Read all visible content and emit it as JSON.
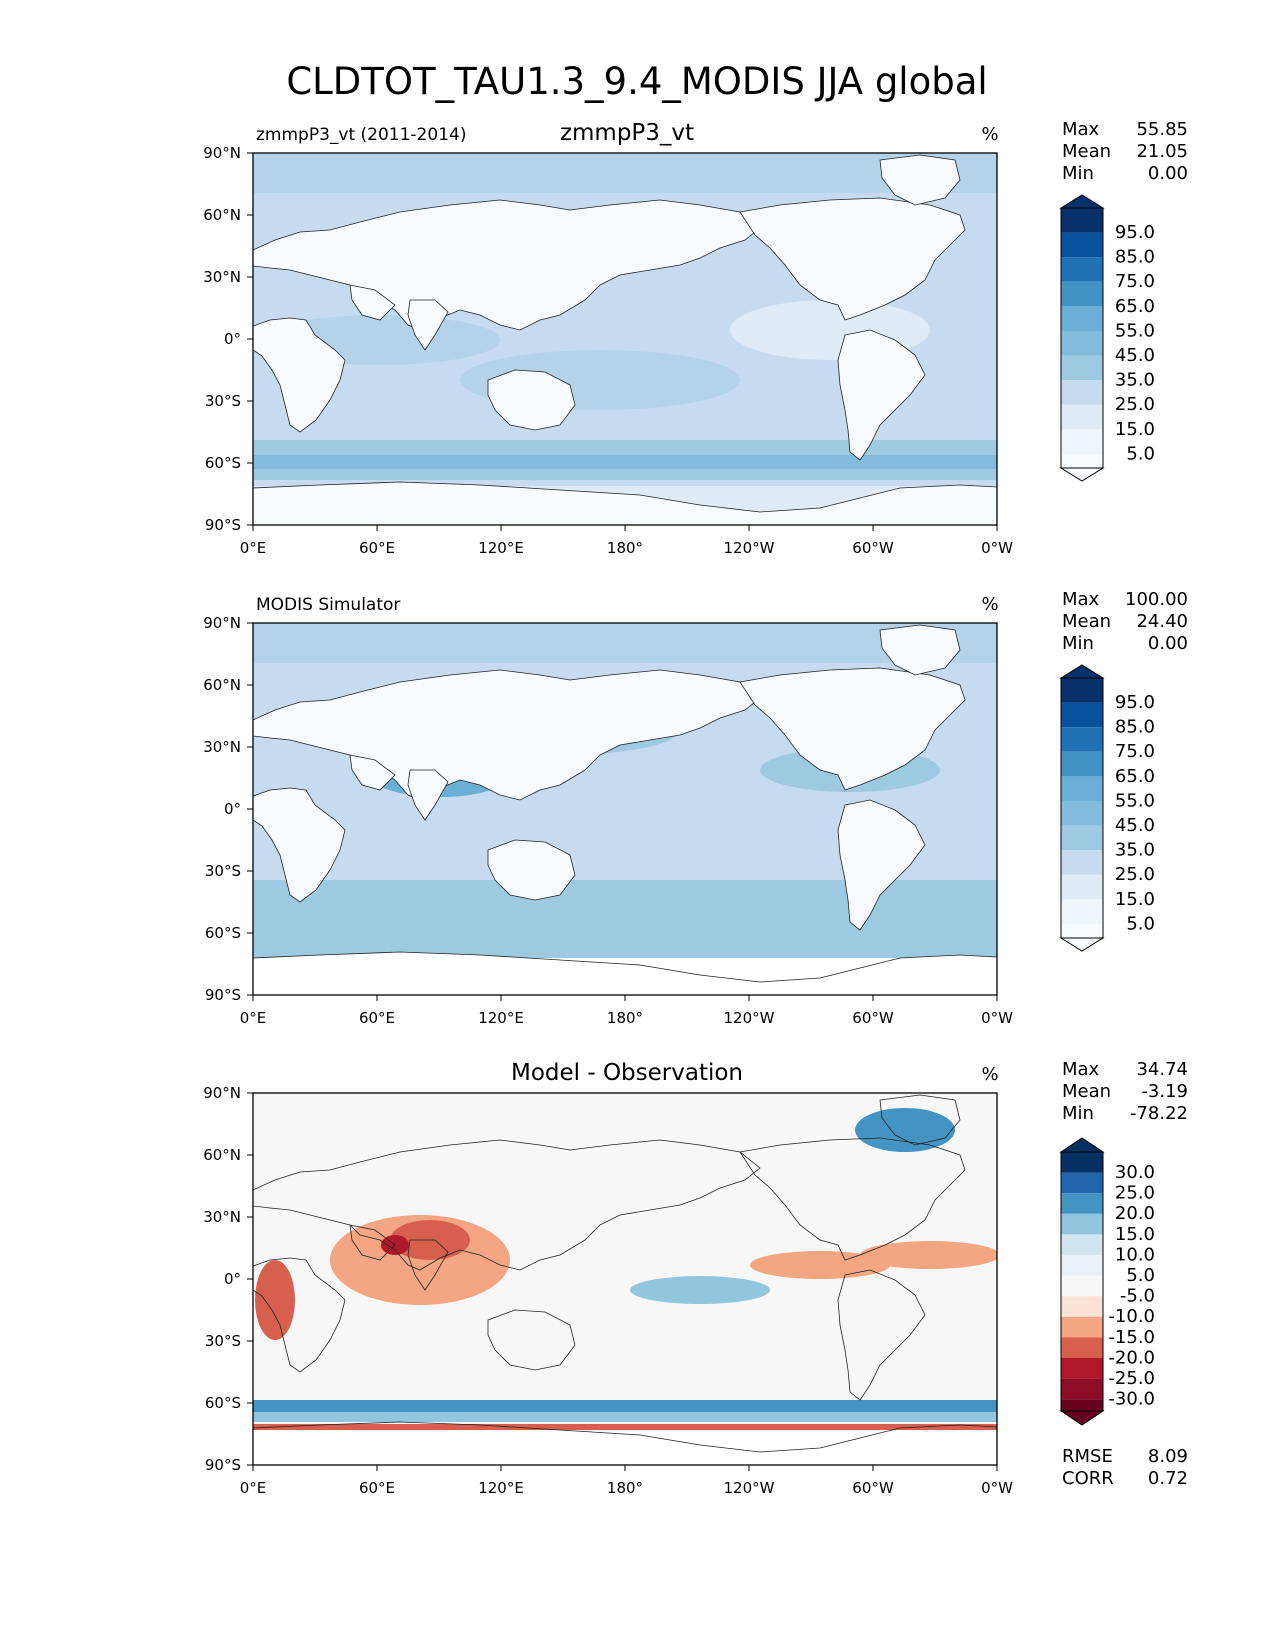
{
  "figure": {
    "title": "CLDTOT_TAU1.3_9.4_MODIS JJA global"
  },
  "panels": [
    {
      "left_title": "zmmpP3_vt (2011-2014)",
      "center_title": "zmmpP3_vt",
      "units": "%",
      "stats": {
        "max_label": "Max",
        "max": "55.85",
        "mean_label": "Mean",
        "mean": "21.05",
        "min_label": "Min",
        "min": "0.00"
      },
      "colorbar_labels": [
        "95.0",
        "85.0",
        "75.0",
        "65.0",
        "55.0",
        "45.0",
        "35.0",
        "25.0",
        "15.0",
        "5.0"
      ]
    },
    {
      "left_title": "MODIS Simulator",
      "center_title": "",
      "units": "%",
      "stats": {
        "max_label": "Max",
        "max": "100.00",
        "mean_label": "Mean",
        "mean": "24.40",
        "min_label": "Min",
        "min": "0.00"
      },
      "colorbar_labels": [
        "95.0",
        "85.0",
        "75.0",
        "65.0",
        "55.0",
        "45.0",
        "35.0",
        "25.0",
        "15.0",
        "5.0"
      ]
    },
    {
      "left_title": "",
      "center_title": "Model - Observation",
      "units": "%",
      "stats": {
        "max_label": "Max",
        "max": "34.74",
        "mean_label": "Mean",
        "mean": "-3.19",
        "min_label": "Min",
        "min": "-78.22"
      },
      "colorbar_labels": [
        "30.0",
        "25.0",
        "20.0",
        "15.0",
        "10.0",
        "5.0",
        "-5.0",
        "-10.0",
        "-15.0",
        "-20.0",
        "-25.0",
        "-30.0"
      ],
      "extra": {
        "rmse_label": "RMSE",
        "rmse": "8.09",
        "corr_label": "CORR",
        "corr": "0.72"
      }
    }
  ],
  "axes": {
    "x_ticks": [
      "0°E",
      "60°E",
      "120°E",
      "180°",
      "120°W",
      "60°W",
      "0°W"
    ],
    "y_ticks": [
      "90°N",
      "60°N",
      "30°N",
      "0°",
      "30°S",
      "60°S",
      "90°S"
    ]
  },
  "colors": {
    "blues": [
      "#f7fbff",
      "#deebf7",
      "#c6dbef",
      "#b4d3e9",
      "#9ecae1",
      "#82bbdb",
      "#6baed6",
      "#4292c6",
      "#2171b5",
      "#08519c",
      "#08306b"
    ],
    "diverging": [
      "#053061",
      "#2166ac",
      "#4393c3",
      "#92c5de",
      "#d1e5f0",
      "#eaf1f6",
      "#f7f7f7",
      "#fbe3d6",
      "#f4a582",
      "#d6604d",
      "#b2182b",
      "#8c0d25",
      "#67001f"
    ]
  },
  "chart_data": [
    {
      "type": "heatmap",
      "title": "zmmpP3_vt",
      "subtitle": "zmmpP3_vt (2011-2014)",
      "units": "%",
      "xlabel": "",
      "ylabel": "",
      "xlim": [
        0,
        360
      ],
      "ylim": [
        -90,
        90
      ],
      "x_ticks": [
        "0°E",
        "60°E",
        "120°E",
        "180°",
        "120°W",
        "60°W",
        "0°W"
      ],
      "y_ticks": [
        "90°N",
        "60°N",
        "30°N",
        "0°",
        "30°S",
        "60°S",
        "90°S"
      ],
      "levels": [
        5,
        15,
        25,
        35,
        45,
        55,
        65,
        75,
        85,
        95
      ],
      "max": 55.85,
      "mean": 21.05,
      "min": 0.0
    },
    {
      "type": "heatmap",
      "title": "MODIS Simulator",
      "units": "%",
      "xlabel": "",
      "ylabel": "",
      "xlim": [
        0,
        360
      ],
      "ylim": [
        -90,
        90
      ],
      "x_ticks": [
        "0°E",
        "60°E",
        "120°E",
        "180°",
        "120°W",
        "60°W",
        "0°W"
      ],
      "y_ticks": [
        "90°N",
        "60°N",
        "30°N",
        "0°",
        "30°S",
        "60°S",
        "90°S"
      ],
      "levels": [
        5,
        15,
        25,
        35,
        45,
        55,
        65,
        75,
        85,
        95
      ],
      "max": 100.0,
      "mean": 24.4,
      "min": 0.0
    },
    {
      "type": "heatmap",
      "title": "Model - Observation",
      "units": "%",
      "xlabel": "",
      "ylabel": "",
      "xlim": [
        0,
        360
      ],
      "ylim": [
        -90,
        90
      ],
      "x_ticks": [
        "0°E",
        "60°E",
        "120°E",
        "180°",
        "120°W",
        "60°W",
        "0°W"
      ],
      "y_ticks": [
        "90°N",
        "60°N",
        "30°N",
        "0°",
        "30°S",
        "60°S",
        "90°S"
      ],
      "levels": [
        -30,
        -25,
        -20,
        -15,
        -10,
        -5,
        5,
        10,
        15,
        20,
        25,
        30
      ],
      "max": 34.74,
      "mean": -3.19,
      "min": -78.22,
      "rmse": 8.09,
      "corr": 0.72
    }
  ]
}
